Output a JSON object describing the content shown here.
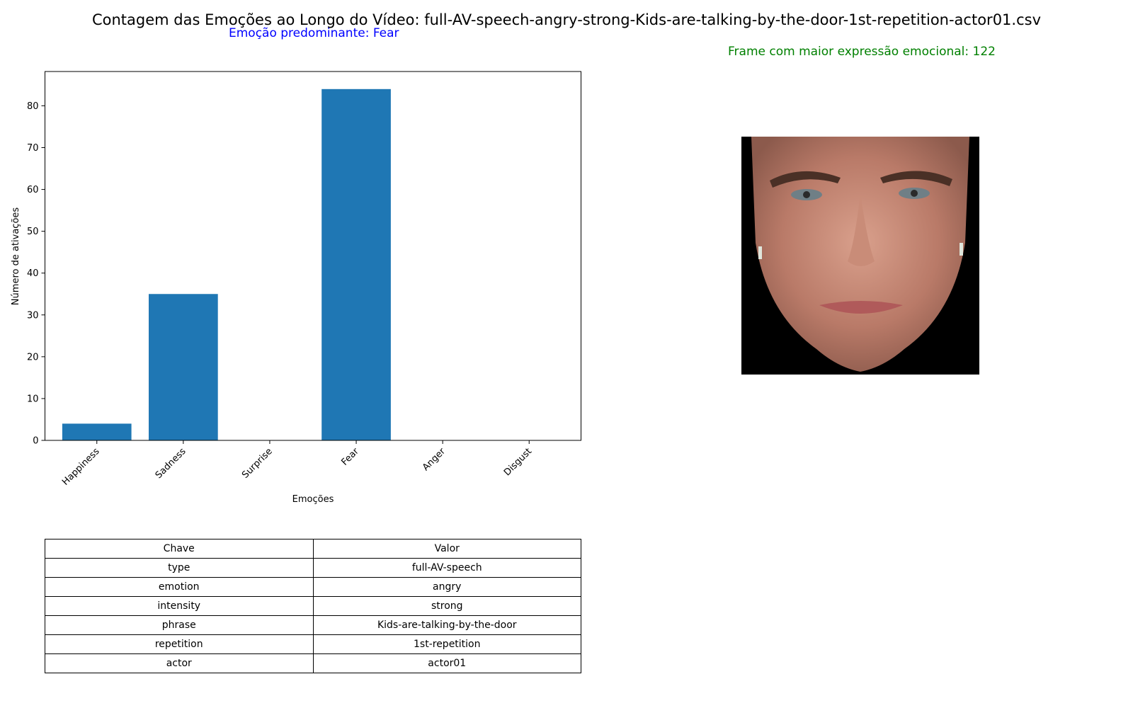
{
  "title": "Contagem das Emoções ao Longo do Vídeo: full-AV-speech-angry-strong-Kids-are-talking-by-the-door-1st-repetition-actor01.csv",
  "predominant_label": "Emoção predominante: Fear",
  "frame_label": "Frame com maior expressão emocional: 122",
  "colors": {
    "bar": "#1f77b4",
    "predominant_text": "#0000ff",
    "frame_text": "#008000"
  },
  "chart_data": {
    "type": "bar",
    "categories": [
      "Happiness",
      "Sadness",
      "Surprise",
      "Fear",
      "Anger",
      "Disgust"
    ],
    "values": [
      4,
      35,
      0,
      84,
      0,
      0
    ],
    "xlabel": "Emoções",
    "ylabel": "Número de ativações",
    "ylim": [
      0,
      88.2
    ],
    "yticks": [
      0,
      10,
      20,
      30,
      40,
      50,
      60,
      70,
      80
    ],
    "grid": false
  },
  "face_image": {
    "description_icon": "face-photo"
  },
  "table": {
    "header": {
      "key": "Chave",
      "value": "Valor"
    },
    "rows": [
      {
        "key": "type",
        "value": "full-AV-speech"
      },
      {
        "key": "emotion",
        "value": "angry"
      },
      {
        "key": "intensity",
        "value": "strong"
      },
      {
        "key": "phrase",
        "value": "Kids-are-talking-by-the-door"
      },
      {
        "key": "repetition",
        "value": "1st-repetition"
      },
      {
        "key": "actor",
        "value": "actor01"
      }
    ]
  }
}
